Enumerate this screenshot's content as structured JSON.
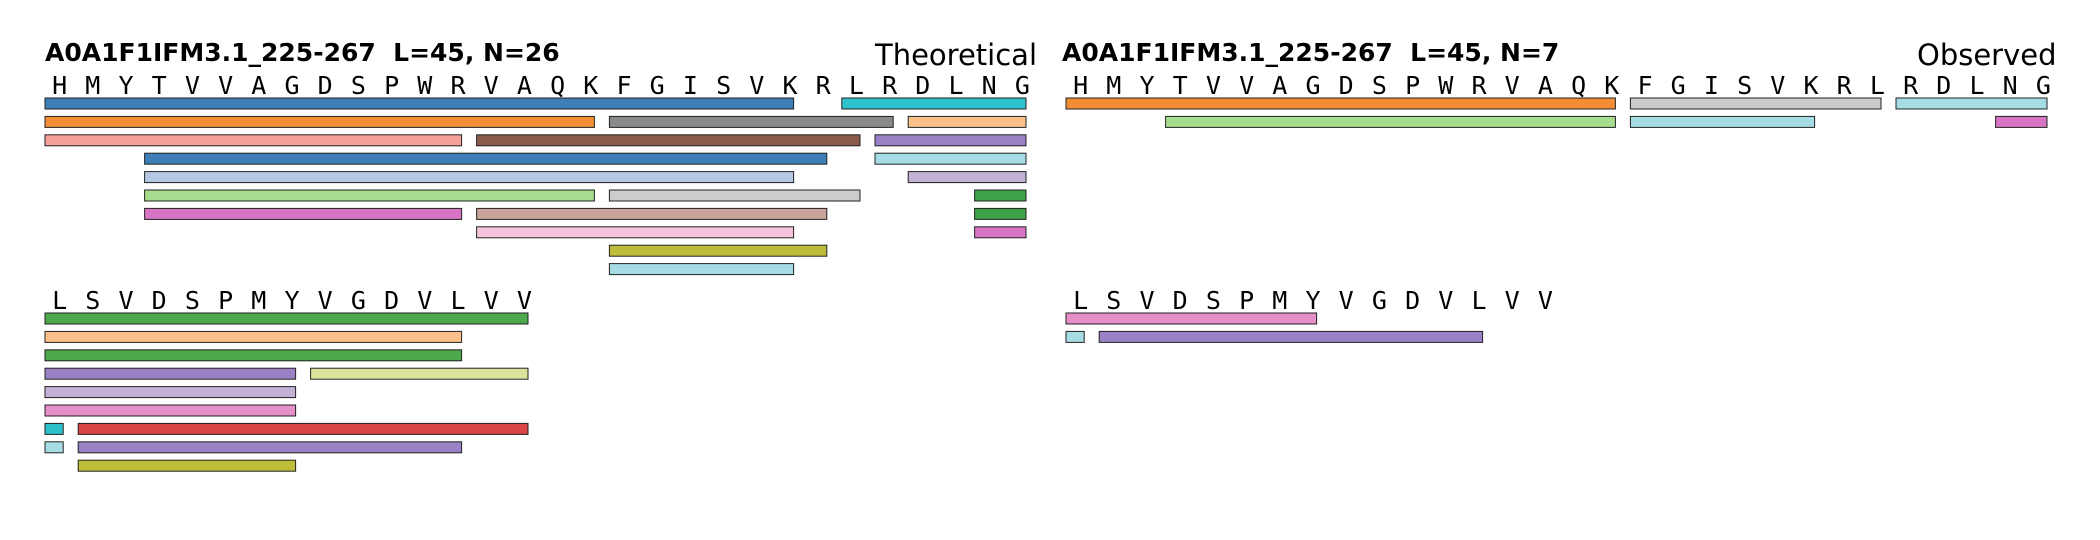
{
  "panels": [
    {
      "title": "A0A1F1IFM3.1_225-267  L=45, N=26",
      "label": "Theoretical",
      "rows": [
        {
          "sequence": [
            "H",
            "M",
            "Y",
            "T",
            "V",
            "V",
            "A",
            "G",
            "D",
            "S",
            "P",
            "W",
            "R",
            "V",
            "A",
            "Q",
            "K",
            "F",
            "G",
            "I",
            "S",
            "V",
            "K",
            "R",
            "L",
            "R",
            "D",
            "L",
            "N",
            "G"
          ],
          "peptides": [
            {
              "start": 1,
              "end": 23,
              "color": "#3d7fb6"
            },
            {
              "start": 25,
              "end": 30,
              "color": "#2ec1cc"
            },
            {
              "start": 1,
              "end": 17,
              "color": "#f28d35"
            },
            {
              "start": 18,
              "end": 26,
              "color": "#8a8a8a"
            },
            {
              "start": 27,
              "end": 30,
              "color": "#fcc08a"
            },
            {
              "start": 1,
              "end": 13,
              "color": "#f6a09b"
            },
            {
              "start": 14,
              "end": 25,
              "color": "#8a5a4d"
            },
            {
              "start": 26,
              "end": 30,
              "color": "#9a80c4"
            },
            {
              "start": 4,
              "end": 24,
              "color": "#3d7fb6"
            },
            {
              "start": 26,
              "end": 30,
              "color": "#a6dde5"
            },
            {
              "start": 4,
              "end": 23,
              "color": "#b5c9e6"
            },
            {
              "start": 27,
              "end": 30,
              "color": "#c3b1d6"
            },
            {
              "start": 4,
              "end": 17,
              "color": "#a5dc8e"
            },
            {
              "start": 18,
              "end": 25,
              "color": "#cccccc"
            },
            {
              "start": 29,
              "end": 30,
              "color": "#3fa24a"
            },
            {
              "start": 4,
              "end": 13,
              "color": "#d874c5"
            },
            {
              "start": 14,
              "end": 24,
              "color": "#c8a39b"
            },
            {
              "start": 29,
              "end": 30,
              "color": "#3fa24a"
            },
            {
              "start": 14,
              "end": 23,
              "color": "#f6c3dc"
            },
            {
              "start": 29,
              "end": 30,
              "color": "#d874c5"
            },
            {
              "start": 18,
              "end": 24,
              "color": "#bdbd3a"
            },
            {
              "start": 18,
              "end": 23,
              "color": "#a6dde5"
            }
          ]
        },
        {
          "sequence": [
            "L",
            "S",
            "V",
            "D",
            "S",
            "P",
            "M",
            "Y",
            "V",
            "G",
            "D",
            "V",
            "L",
            "V",
            "V"
          ],
          "peptides": [
            {
              "start": 1,
              "end": 15,
              "color": "#4ea84c"
            },
            {
              "start": 1,
              "end": 13,
              "color": "#fcc08a"
            },
            {
              "start": 1,
              "end": 13,
              "color": "#4ea84c"
            },
            {
              "start": 1,
              "end": 8,
              "color": "#9a80c4"
            },
            {
              "start": 9,
              "end": 15,
              "color": "#dce39b"
            },
            {
              "start": 1,
              "end": 8,
              "color": "#c3b1d6"
            },
            {
              "start": 1,
              "end": 8,
              "color": "#e78fc8"
            },
            {
              "start": 1,
              "end": 1,
              "color": "#2ec1cc"
            },
            {
              "start": 2,
              "end": 15,
              "color": "#d94545"
            },
            {
              "start": 1,
              "end": 1,
              "color": "#a6dde5"
            },
            {
              "start": 2,
              "end": 13,
              "color": "#9a80c4"
            },
            {
              "start": 2,
              "end": 8,
              "color": "#bdbd3a"
            }
          ]
        }
      ]
    },
    {
      "title": "A0A1F1IFM3.1_225-267  L=45, N=7",
      "label": "Observed",
      "rows": [
        {
          "sequence": [
            "H",
            "M",
            "Y",
            "T",
            "V",
            "V",
            "A",
            "G",
            "D",
            "S",
            "P",
            "W",
            "R",
            "V",
            "A",
            "Q",
            "K",
            "F",
            "G",
            "I",
            "S",
            "V",
            "K",
            "R",
            "L",
            "R",
            "D",
            "L",
            "N",
            "G"
          ],
          "peptides": [
            {
              "start": 1,
              "end": 17,
              "color": "#f28d35"
            },
            {
              "start": 18,
              "end": 25,
              "color": "#cccccc"
            },
            {
              "start": 26,
              "end": 30,
              "color": "#a6dde5"
            },
            {
              "start": 4,
              "end": 17,
              "color": "#a5dc8e"
            },
            {
              "start": 18,
              "end": 23,
              "color": "#a6dde5"
            },
            {
              "start": 29,
              "end": 30,
              "color": "#d874c5"
            }
          ]
        },
        {
          "sequence": [
            "L",
            "S",
            "V",
            "D",
            "S",
            "P",
            "M",
            "Y",
            "V",
            "G",
            "D",
            "V",
            "L",
            "V",
            "V"
          ],
          "peptides": [
            {
              "start": 1,
              "end": 8,
              "color": "#e78fc8"
            },
            {
              "start": 1,
              "end": 1,
              "color": "#a6dde5"
            },
            {
              "start": 2,
              "end": 13,
              "color": "#9a80c4"
            }
          ]
        }
      ]
    }
  ]
}
